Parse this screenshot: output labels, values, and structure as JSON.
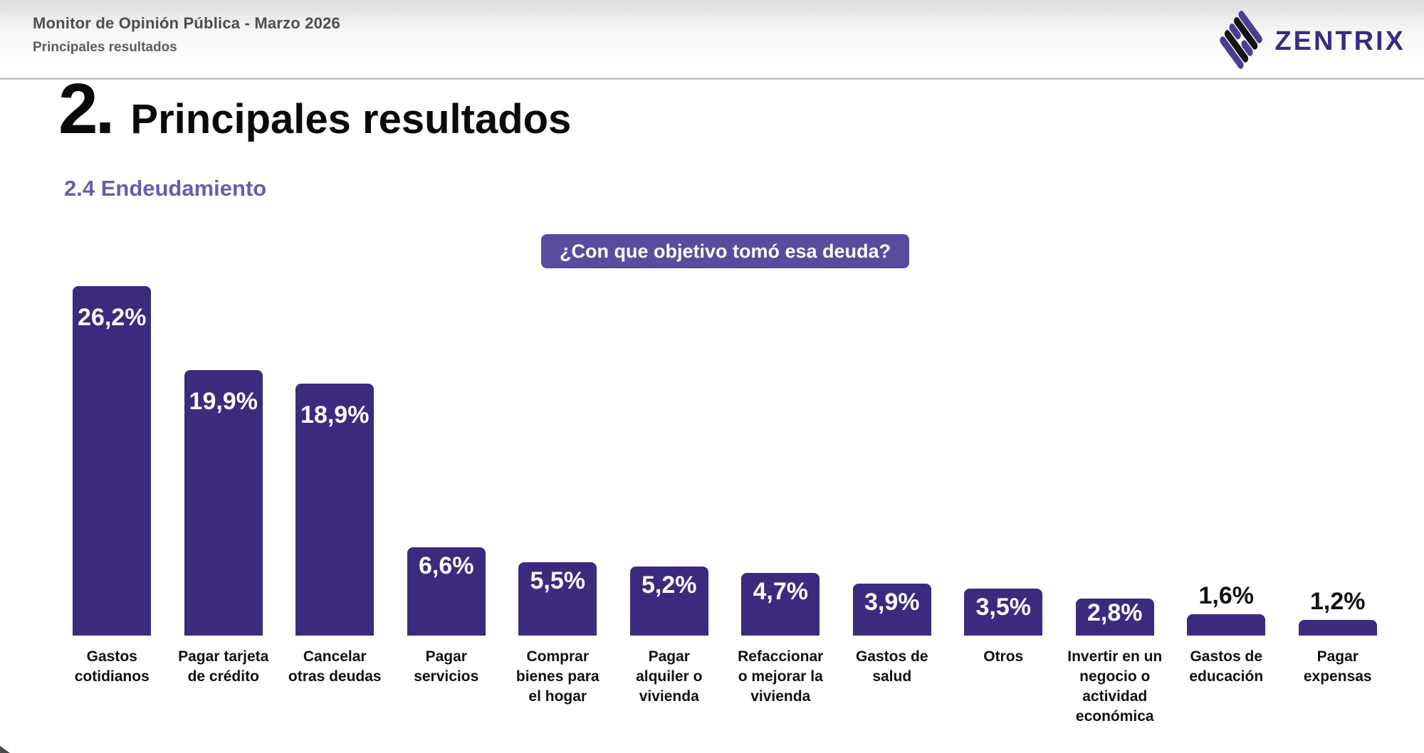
{
  "header": {
    "line1": "Monitor de Opinión Pública - Marzo 2026",
    "line2": "Principales resultados"
  },
  "logo": {
    "text": "ZENTRIX"
  },
  "section": {
    "number": "2.",
    "title": "Principales resultados",
    "subtitle": "2.4 Endeudamiento"
  },
  "question_badge": "¿Con que objetivo tomó esa deuda?",
  "colors": {
    "bar": "#3b2a7e",
    "badge": "#5b4b9e",
    "subtitle": "#6a5bb0",
    "logo_text": "#332e82",
    "logo_purple": "#493e94",
    "logo_black": "#151515"
  },
  "chart_data": {
    "type": "bar",
    "title": "¿Con que objetivo tomó esa deuda?",
    "categories": [
      "Gastos cotidianos",
      "Pagar tarjeta de crédito",
      "Cancelar otras deudas",
      "Pagar servicios",
      "Comprar bienes para el hogar",
      "Pagar alquiler o vivienda",
      "Refaccionar o mejorar la vivienda",
      "Gastos de salud",
      "Otros",
      "Invertir en un negocio o actividad económica",
      "Gastos de educación",
      "Pagar expensas"
    ],
    "values": [
      26.2,
      19.9,
      18.9,
      6.6,
      5.5,
      5.2,
      4.7,
      3.9,
      3.5,
      2.8,
      1.6,
      1.2
    ],
    "value_labels": [
      "26,2%",
      "19,9%",
      "18,9%",
      "6,6%",
      "5,5%",
      "5,2%",
      "4,7%",
      "3,9%",
      "3,5%",
      "2,8%",
      "1,6%",
      "1,2%"
    ],
    "xlabel": "",
    "ylabel": "",
    "ylim": [
      0,
      26.2
    ],
    "grid": false,
    "legend": false,
    "bar_color": "#3b2a7e",
    "value_label_inside_color": "#ffffff",
    "value_label_outside_color": "#111111"
  }
}
